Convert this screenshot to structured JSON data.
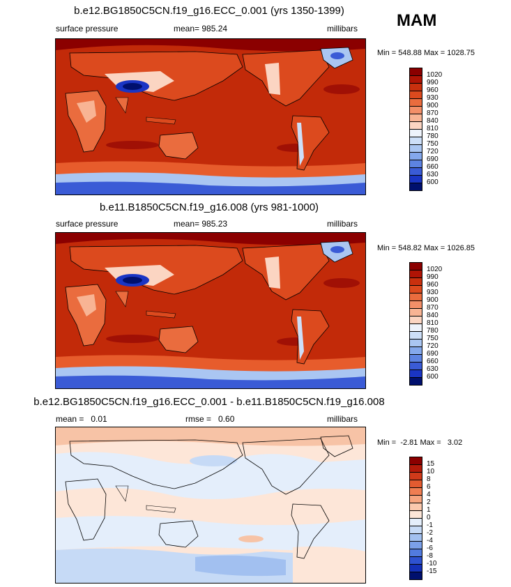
{
  "season": "MAM",
  "panels": [
    {
      "title": "b.e12.BG1850C5CN.f19_g16.ECC_0.001 (yrs 1350-1399)",
      "left_label": "surface pressure",
      "center_label": "mean= 985.24",
      "right_label": "millibars",
      "minmax": "Min = 548.88 Max = 1028.75",
      "colorbar": {
        "labels": [
          "1020",
          "990",
          "960",
          "930",
          "900",
          "870",
          "840",
          "810",
          "780",
          "750",
          "720",
          "690",
          "660",
          "630",
          "600"
        ],
        "colors": [
          "#8b0000",
          "#b01405",
          "#c9300e",
          "#dc4a1e",
          "#ea6c3e",
          "#f38f68",
          "#f8b494",
          "#fbd5c2",
          "#eef3fb",
          "#cddff8",
          "#aac6f2",
          "#84a8ec",
          "#5d83e2",
          "#3a5bd6",
          "#1a35c4",
          "#00106e"
        ]
      }
    },
    {
      "title": "b.e11.B1850C5CN.f19_g16.008 (yrs 981-1000)",
      "left_label": "surface pressure",
      "center_label": "mean= 985.23",
      "right_label": "millibars",
      "minmax": "Min = 548.82 Max = 1026.85",
      "colorbar": {
        "labels": [
          "1020",
          "990",
          "960",
          "930",
          "900",
          "870",
          "840",
          "810",
          "780",
          "750",
          "720",
          "690",
          "660",
          "630",
          "600"
        ],
        "colors": [
          "#8b0000",
          "#b01405",
          "#c9300e",
          "#dc4a1e",
          "#ea6c3e",
          "#f38f68",
          "#f8b494",
          "#fbd5c2",
          "#eef3fb",
          "#cddff8",
          "#aac6f2",
          "#84a8ec",
          "#5d83e2",
          "#3a5bd6",
          "#1a35c4",
          "#00106e"
        ]
      }
    },
    {
      "title": "b.e12.BG1850C5CN.f19_g16.ECC_0.001 - b.e11.B1850C5CN.f19_g16.008",
      "left_label": "mean =   0.01",
      "center_label": "rmse =   0.60",
      "right_label": "millibars",
      "minmax": "Min =  -2.81 Max =   3.02",
      "colorbar": {
        "labels": [
          "15",
          "10",
          "8",
          "6",
          "4",
          "2",
          "1",
          "0",
          "-1",
          "-2",
          "-4",
          "-6",
          "-8",
          "-10",
          "-15"
        ],
        "colors": [
          "#8b0000",
          "#b31a0a",
          "#cf3a1a",
          "#e35b30",
          "#f07e52",
          "#f7a57f",
          "#fbc9ae",
          "#fde6d8",
          "#e4eefb",
          "#c6daf6",
          "#a2c0f0",
          "#7ba0e9",
          "#527bdf",
          "#2e52d1",
          "#1430b8",
          "#00106e"
        ]
      }
    }
  ],
  "chart_data": [
    {
      "type": "heatmap",
      "title": "b.e12.BG1850C5CN.f19_g16.ECC_0.001 (yrs 1350-1399)",
      "variable": "surface pressure",
      "units": "millibars",
      "mean": 985.24,
      "min": 548.88,
      "max": 1028.75,
      "contour_levels": [
        600,
        630,
        660,
        690,
        720,
        750,
        780,
        810,
        840,
        870,
        900,
        930,
        960,
        990,
        1020
      ]
    },
    {
      "type": "heatmap",
      "title": "b.e11.B1850C5CN.f19_g16.008 (yrs 981-1000)",
      "variable": "surface pressure",
      "units": "millibars",
      "mean": 985.23,
      "min": 548.82,
      "max": 1026.85,
      "contour_levels": [
        600,
        630,
        660,
        690,
        720,
        750,
        780,
        810,
        840,
        870,
        900,
        930,
        960,
        990,
        1020
      ]
    },
    {
      "type": "heatmap",
      "title": "b.e12.BG1850C5CN.f19_g16.ECC_0.001 - b.e11.B1850C5CN.f19_g16.008",
      "units": "millibars",
      "mean": 0.01,
      "rmse": 0.6,
      "min": -2.81,
      "max": 3.02,
      "contour_levels": [
        -15,
        -10,
        -8,
        -6,
        -4,
        -2,
        -1,
        0,
        1,
        2,
        4,
        6,
        8,
        10,
        15
      ]
    }
  ]
}
